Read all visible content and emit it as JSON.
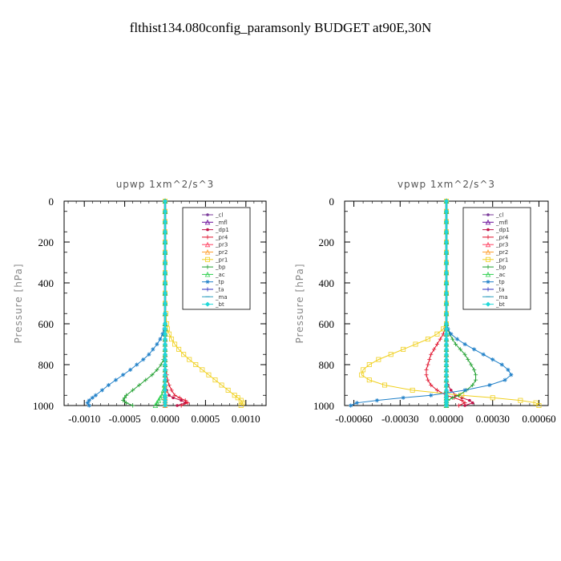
{
  "title": "flthist134.080config_paramsonly  BUDGET at90E,30N",
  "chart_data": [
    {
      "type": "line",
      "title": "upwp   1xm^2/s^3",
      "ylabel": "Pressure [hPa]",
      "xlim": [
        -0.00125,
        0.00125
      ],
      "ylim": [
        1000,
        0
      ],
      "xticks": [
        -0.001,
        -0.0005,
        0,
        0.0005,
        0.001
      ],
      "xtick_labels": [
        "-0.0010",
        "-0.0005",
        "0.0000",
        "0.0005",
        "0.0010"
      ],
      "yticks": [
        0,
        200,
        400,
        600,
        800,
        1000
      ],
      "ytick_labels": [
        "0",
        "200",
        "400",
        "600",
        "800",
        "1000"
      ],
      "legend_position": "top-right",
      "y": [
        0,
        50,
        100,
        150,
        200,
        250,
        300,
        350,
        400,
        450,
        500,
        550,
        600,
        625,
        650,
        675,
        700,
        725,
        750,
        775,
        800,
        825,
        850,
        875,
        900,
        925,
        950,
        962,
        975,
        987,
        1000
      ],
      "series": [
        {
          "name": "_cl",
          "color": "#7a3a9a",
          "marker": "dot",
          "values": [
            0,
            0,
            0,
            0,
            0,
            0,
            0,
            0,
            0,
            0,
            0,
            0,
            0,
            0,
            0,
            0,
            0,
            0,
            0,
            0,
            0,
            0,
            0,
            0,
            0,
            0,
            0,
            0,
            0,
            0,
            0
          ]
        },
        {
          "name": "_mfl",
          "color": "#6a0d9a",
          "marker": "triangle",
          "values": [
            0,
            0,
            0,
            0,
            0,
            0,
            0,
            0,
            0,
            0,
            0,
            0,
            0,
            0,
            0,
            0,
            0,
            0,
            0,
            0,
            0,
            0,
            0,
            0,
            0,
            0,
            0,
            0,
            0,
            0,
            0
          ]
        },
        {
          "name": "_dp1",
          "color": "#c0144a",
          "marker": "dot",
          "values": [
            0,
            0,
            0,
            0,
            0,
            0,
            0,
            0,
            0,
            0,
            0,
            0,
            0,
            0,
            0,
            0,
            0,
            0,
            0,
            0,
            0,
            0,
            0,
            0,
            0,
            2e-05,
            5e-05,
            0.0001,
            0.0002,
            0.00025,
            0.00015
          ]
        },
        {
          "name": "_pr4",
          "color": "#e0102a",
          "marker": "cross",
          "values": [
            0,
            0,
            0,
            0,
            0,
            0,
            0,
            0,
            0,
            0,
            0,
            0,
            0,
            0,
            0,
            0,
            0,
            0,
            0,
            0,
            0,
            1e-05,
            2e-05,
            3e-05,
            5e-05,
            8e-05,
            0.00012,
            0.00018,
            0.00025,
            0.00028,
            0.0002
          ]
        },
        {
          "name": "_pr3",
          "color": "#ff4060",
          "marker": "triangle",
          "values": [
            0,
            0,
            0,
            0,
            0,
            0,
            0,
            0,
            0,
            0,
            0,
            0,
            0,
            0,
            0,
            0,
            0,
            0,
            0,
            0,
            0,
            0,
            0,
            0,
            0,
            0,
            0,
            0,
            0,
            0,
            0
          ]
        },
        {
          "name": "_pr2",
          "color": "#ffa030",
          "marker": "triangle",
          "values": [
            0,
            0,
            0,
            0,
            0,
            0,
            0,
            0,
            0,
            0,
            0,
            0,
            0,
            0,
            0,
            0,
            0,
            0,
            0,
            0,
            0,
            0,
            0,
            0,
            0,
            0,
            0,
            0,
            0,
            0,
            0
          ]
        },
        {
          "name": "_pr1",
          "color": "#f0d020",
          "marker": "square",
          "values": [
            0,
            0,
            0,
            0,
            0,
            0,
            0,
            0,
            0,
            0,
            0,
            1e-05,
            2e-05,
            3e-05,
            5e-05,
            8e-05,
            0.00012,
            0.00017,
            0.00023,
            0.0003,
            0.00038,
            0.00046,
            0.00054,
            0.00062,
            0.0007,
            0.00078,
            0.00086,
            0.0009,
            0.00094,
            0.00096,
            0.00094
          ]
        },
        {
          "name": "_bp",
          "color": "#20a030",
          "marker": "cross",
          "values": [
            0,
            0,
            0,
            0,
            0,
            0,
            0,
            0,
            0,
            0,
            0,
            0,
            0,
            0,
            0,
            0,
            0,
            0,
            0,
            -2e-05,
            -5e-05,
            -0.0001,
            -0.00016,
            -0.00024,
            -0.00032,
            -0.0004,
            -0.00048,
            -0.0005,
            -0.00052,
            -0.00048,
            -0.0004
          ]
        },
        {
          "name": "_ac",
          "color": "#30d050",
          "marker": "triangle",
          "values": [
            0,
            0,
            0,
            0,
            0,
            0,
            0,
            0,
            0,
            0,
            0,
            0,
            0,
            0,
            0,
            0,
            0,
            0,
            0,
            0,
            0,
            0,
            0,
            0,
            -1e-05,
            -2e-05,
            -4e-05,
            -6e-05,
            -8e-05,
            -0.0001,
            -0.00012
          ]
        },
        {
          "name": "_tp",
          "color": "#2080c8",
          "marker": "star",
          "values": [
            0,
            0,
            0,
            0,
            0,
            0,
            0,
            0,
            0,
            0,
            0,
            0,
            0,
            -1e-05,
            -3e-05,
            -6e-05,
            -0.0001,
            -0.00015,
            -0.0002,
            -0.00027,
            -0.00035,
            -0.00043,
            -0.00052,
            -0.00061,
            -0.0007,
            -0.00078,
            -0.00086,
            -0.0009,
            -0.00094,
            -0.00096,
            -0.00094
          ]
        },
        {
          "name": "_ta",
          "color": "#3030c0",
          "marker": "cross",
          "values": [
            0,
            0,
            0,
            0,
            0,
            0,
            0,
            0,
            0,
            0,
            0,
            0,
            0,
            0,
            0,
            0,
            0,
            0,
            0,
            0,
            0,
            0,
            0,
            0,
            0,
            0,
            0,
            0,
            0,
            0,
            0
          ]
        },
        {
          "name": "_ma",
          "color": "#30a0c0",
          "marker": "dash",
          "values": [
            0,
            0,
            0,
            0,
            0,
            0,
            0,
            0,
            0,
            0,
            0,
            0,
            0,
            0,
            0,
            0,
            0,
            0,
            0,
            0,
            0,
            0,
            0,
            0,
            0,
            0,
            0,
            0,
            0,
            0,
            0
          ]
        },
        {
          "name": "_bt",
          "color": "#20d8d8",
          "marker": "diamond",
          "values": [
            0,
            0,
            0,
            0,
            0,
            0,
            0,
            0,
            0,
            0,
            0,
            0,
            0,
            0,
            0,
            0,
            0,
            0,
            0,
            0,
            0,
            0,
            0,
            0,
            0,
            0,
            0,
            0,
            0,
            0,
            0
          ]
        }
      ]
    },
    {
      "type": "line",
      "title": "vpwp   1xm^2/s^3",
      "ylabel": "Pressure [hPa]",
      "xlim": [
        -0.00066,
        0.00066
      ],
      "ylim": [
        1000,
        0
      ],
      "xticks": [
        -0.0006,
        -0.0003,
        0,
        0.0003,
        0.0006
      ],
      "xtick_labels": [
        "-0.00060",
        "-0.00030",
        "0.00000",
        "0.00030",
        "0.00060"
      ],
      "yticks": [
        0,
        200,
        400,
        600,
        800,
        1000
      ],
      "ytick_labels": [
        "0",
        "200",
        "400",
        "600",
        "800",
        "1000"
      ],
      "legend_position": "top-right",
      "y": [
        0,
        50,
        100,
        150,
        200,
        250,
        300,
        350,
        400,
        450,
        500,
        550,
        600,
        625,
        650,
        675,
        700,
        725,
        750,
        775,
        800,
        825,
        850,
        875,
        900,
        925,
        950,
        962,
        975,
        987,
        1000
      ],
      "series": [
        {
          "name": "_cl",
          "color": "#7a3a9a",
          "marker": "dot",
          "values": [
            0,
            0,
            0,
            0,
            0,
            0,
            0,
            0,
            0,
            0,
            0,
            0,
            0,
            0,
            0,
            0,
            0,
            0,
            0,
            0,
            0,
            0,
            0,
            0,
            0,
            0,
            0,
            0,
            0,
            0,
            0
          ]
        },
        {
          "name": "_mfl",
          "color": "#6a0d9a",
          "marker": "triangle",
          "values": [
            0,
            0,
            0,
            0,
            0,
            0,
            0,
            0,
            0,
            0,
            0,
            0,
            0,
            0,
            0,
            0,
            0,
            0,
            0,
            0,
            0,
            0,
            0,
            0,
            0,
            0,
            0,
            0,
            0,
            0,
            0
          ]
        },
        {
          "name": "_dp1",
          "color": "#c0144a",
          "marker": "dot",
          "values": [
            0,
            0,
            0,
            0,
            0,
            0,
            0,
            0,
            0,
            0,
            0,
            0,
            0,
            0,
            0,
            0,
            0,
            0,
            0,
            0,
            0,
            0,
            0,
            0,
            1e-05,
            3e-05,
            6e-05,
            0.0001,
            0.00015,
            0.00017,
            0.00012
          ]
        },
        {
          "name": "_pr4",
          "color": "#e0102a",
          "marker": "cross",
          "values": [
            0,
            0,
            0,
            0,
            0,
            0,
            0,
            0,
            0,
            0,
            0,
            0,
            0,
            -1e-05,
            -2e-05,
            -4e-05,
            -6e-05,
            -8e-05,
            -0.0001,
            -0.00011,
            -0.00012,
            -0.00013,
            -0.00013,
            -0.00012,
            -0.0001,
            -6e-05,
            0,
            5e-05,
            0.0001,
            0.00012,
            8e-05
          ]
        },
        {
          "name": "_pr3",
          "color": "#ff4060",
          "marker": "triangle",
          "values": [
            0,
            0,
            0,
            0,
            0,
            0,
            0,
            0,
            0,
            0,
            0,
            0,
            0,
            0,
            0,
            0,
            0,
            0,
            0,
            0,
            0,
            0,
            0,
            0,
            0,
            0,
            0,
            0,
            0,
            0,
            0
          ]
        },
        {
          "name": "_pr2",
          "color": "#ffa030",
          "marker": "triangle",
          "values": [
            0,
            0,
            0,
            0,
            0,
            0,
            0,
            0,
            0,
            0,
            0,
            0,
            0,
            0,
            0,
            0,
            0,
            0,
            0,
            0,
            0,
            0,
            0,
            0,
            0,
            0,
            0,
            0,
            0,
            0,
            0
          ]
        },
        {
          "name": "_pr1",
          "color": "#f0d020",
          "marker": "square",
          "values": [
            0,
            0,
            0,
            0,
            0,
            0,
            0,
            0,
            0,
            0,
            0,
            0,
            0,
            -2e-05,
            -6e-05,
            -0.00012,
            -0.0002,
            -0.00028,
            -0.00036,
            -0.00044,
            -0.0005,
            -0.00054,
            -0.00055,
            -0.0005,
            -0.0004,
            -0.00022,
            0.0001,
            0.0003,
            0.00048,
            0.00058,
            0.0006
          ]
        },
        {
          "name": "_bp",
          "color": "#20a030",
          "marker": "cross",
          "values": [
            0,
            0,
            0,
            0,
            0,
            0,
            0,
            0,
            0,
            0,
            0,
            0,
            0,
            1e-05,
            2e-05,
            4e-05,
            6e-05,
            9e-05,
            0.00012,
            0.00014,
            0.00016,
            0.00018,
            0.00019,
            0.00019,
            0.00017,
            0.00013,
            8e-05,
            4e-05,
            1e-05,
            0,
            0
          ]
        },
        {
          "name": "_ac",
          "color": "#30d050",
          "marker": "triangle",
          "values": [
            0,
            0,
            0,
            0,
            0,
            0,
            0,
            0,
            0,
            0,
            0,
            0,
            0,
            0,
            0,
            0,
            0,
            0,
            0,
            0,
            0,
            0,
            0,
            0,
            0,
            0,
            0,
            0,
            0,
            0,
            0
          ]
        },
        {
          "name": "_tp",
          "color": "#2080c8",
          "marker": "star",
          "values": [
            0,
            0,
            0,
            0,
            0,
            0,
            0,
            0,
            0,
            0,
            0,
            0,
            0,
            1e-05,
            3e-05,
            7e-05,
            0.00012,
            0.00018,
            0.00024,
            0.0003,
            0.00036,
            0.0004,
            0.00042,
            0.00038,
            0.00028,
            0.00012,
            -0.0001,
            -0.00028,
            -0.00045,
            -0.00058,
            -0.00062
          ]
        },
        {
          "name": "_ta",
          "color": "#3030c0",
          "marker": "cross",
          "values": [
            0,
            0,
            0,
            0,
            0,
            0,
            0,
            0,
            0,
            0,
            0,
            0,
            0,
            0,
            0,
            0,
            0,
            0,
            0,
            0,
            0,
            0,
            0,
            0,
            0,
            0,
            0,
            0,
            0,
            0,
            0
          ]
        },
        {
          "name": "_ma",
          "color": "#30a0c0",
          "marker": "dash",
          "values": [
            0,
            0,
            0,
            0,
            0,
            0,
            0,
            0,
            0,
            0,
            0,
            0,
            0,
            0,
            0,
            0,
            0,
            0,
            0,
            0,
            0,
            0,
            0,
            0,
            0,
            0,
            0,
            0,
            0,
            0,
            0
          ]
        },
        {
          "name": "_bt",
          "color": "#20d8d8",
          "marker": "diamond",
          "values": [
            0,
            0,
            0,
            0,
            0,
            0,
            0,
            0,
            0,
            0,
            0,
            0,
            0,
            0,
            0,
            0,
            0,
            0,
            0,
            0,
            0,
            0,
            0,
            0,
            0,
            0,
            0,
            0,
            0,
            0,
            0
          ]
        }
      ]
    }
  ]
}
